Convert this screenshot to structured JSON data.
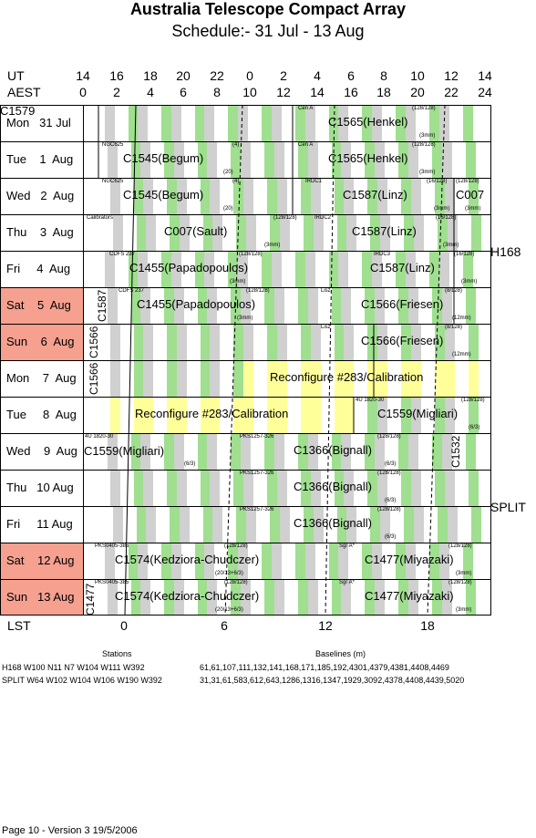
{
  "title": "Australia Telescope Compact Array",
  "subtitle": "Schedule:- 31 Jul - 13 Aug",
  "axis": {
    "ut_label": "UT",
    "aest_label": "AEST",
    "ut_ticks": [
      "14",
      "16",
      "18",
      "20",
      "22",
      "0",
      "2",
      "4",
      "6",
      "8",
      "10",
      "12",
      "14"
    ],
    "aest_ticks": [
      "0",
      "2",
      "4",
      "6",
      "8",
      "10",
      "12",
      "14",
      "16",
      "18",
      "20",
      "22",
      "24"
    ],
    "lst_label": "LST",
    "lst_ticks": [
      "0",
      "6",
      "12",
      "18"
    ]
  },
  "days": [
    {
      "label": "Mon   31 Jul",
      "weekend": false
    },
    {
      "label": "Tue    1  Aug",
      "weekend": false
    },
    {
      "label": "Wed   2  Aug",
      "weekend": false
    },
    {
      "label": "Thu    3  Aug",
      "weekend": false
    },
    {
      "label": "Fri     4  Aug",
      "weekend": false
    },
    {
      "label": "Sat    5  Aug",
      "weekend": true
    },
    {
      "label": "Sun    6  Aug",
      "weekend": true
    },
    {
      "label": "Mon    7  Aug",
      "weekend": false
    },
    {
      "label": "Tue     8  Aug",
      "weekend": false
    },
    {
      "label": "Wed    9  Aug",
      "weekend": false
    },
    {
      "label": "Thu   10 Aug",
      "weekend": false
    },
    {
      "label": "Fri     11 Aug",
      "weekend": false
    },
    {
      "label": "Sat    12 Aug",
      "weekend": true
    },
    {
      "label": "Sun   13 Aug",
      "weekend": true
    }
  ],
  "projects": {
    "r0": {
      "a": "C1579",
      "b": "C1565(Henkel)",
      "b_src": "Cen A",
      "b_cfg": "(128/128)",
      "b_note": "(3mm)"
    },
    "r1": {
      "a": "C1545(Begum)",
      "a_src": "NGC625",
      "a_cfg": "(4)",
      "a_note": "(20)",
      "b": "C1565(Henkel)",
      "b_src": "Cen A",
      "b_cfg": "(128/128)",
      "b_note": "(3mm)"
    },
    "r2": {
      "a": "C1545(Begum)",
      "a_src": "NGC625",
      "a_cfg": "(4)",
      "a_note": "(20)",
      "b": "C1587(Linz)",
      "b_src": "IRDC1",
      "b_cfg": "(16/128)",
      "b_note": "(3mm)",
      "c": "C007",
      "c_cfg": "(128/128)",
      "c_note": "(3mm)"
    },
    "r3": {
      "a": "C007(Sault)",
      "a_src": "Calibrators",
      "a_cfg": "(128/128)",
      "a_note": "(3mm)",
      "b": "C1587(Linz)",
      "b_src": "IRDC2",
      "b_cfg": "(16/128)",
      "b_note": "(3mm)"
    },
    "r4": {
      "a": "C1455(Papadopoulos)",
      "a_src": "CDFS 237",
      "a_cfg": "(128/128)",
      "a_note": "(3mm)",
      "b": "C1587(Linz)",
      "b_src": "IRDC3",
      "b_cfg": "(16/128)",
      "b_note": "(3mm)"
    },
    "r5": {
      "v": "C1587",
      "a": "C1455(Papadopoulos)",
      "a_src": "CDFS 237",
      "a_cfg": "(128/128)",
      "a_note": "(3mm)",
      "b": "C1566(Friesen)",
      "b_src": "Lisz",
      "b_cfg": "(8/128)",
      "b_note": "(12mm)"
    },
    "r6": {
      "v": "C1566",
      "b": "C1566(Friesen)",
      "b_src": "Lisz",
      "b_cfg": "(8/128)",
      "b_note": "(12mm)"
    },
    "r7": {
      "v": "C1566",
      "a": "Reconfigure #283/Calibration"
    },
    "r8": {
      "a": "Reconfigure #283/Calibration",
      "b": "C1559(Migliari)",
      "b_src": "4U 1820-30",
      "b_cfg": "(128/128)",
      "b_note": "(6/3)"
    },
    "r9": {
      "a": "C1559(Migliari)",
      "a_src": "4U 1820-30",
      "a_note": "(6/3)",
      "b": "C1366(Bignall)",
      "b_src": "PKS1257-326",
      "b_cfg": "(128/128)",
      "b_note": "(6/3)",
      "v": "C1532"
    },
    "r10": {
      "b": "C1366(Bignall)",
      "b_src": "PKS1257-326",
      "b_cfg": "(128/128)",
      "b_note": "(6/3)"
    },
    "r11": {
      "b": "C1366(Bignall)",
      "b_src": "PKS1257-326",
      "b_cfg": "(128/128)",
      "b_note": "(6/3)"
    },
    "r12": {
      "a": "C1574(Kedziora-Chudczer)",
      "a_src": "PKS0405-385",
      "a_cfg": "(128/128)",
      "a_note": "(20/13+6/3)",
      "b": "C1477(Miyazaki)",
      "b_src": "Sgr A*",
      "b_cfg": "(128/128)",
      "b_note": "(3mm)"
    },
    "r13": {
      "v": "C1477",
      "a": "C1574(Kedziora-Chudczer)",
      "a_src": "PKS0405-385",
      "a_cfg": "(128/128)",
      "a_note": "(20/13+6/3)",
      "b": "C1477(Miyazaki)",
      "b_src": "Sgr A*",
      "b_cfg": "(128/128)",
      "b_note": "(3mm)"
    }
  },
  "configs": {
    "h168": "H168",
    "split": "SPLIT"
  },
  "legend": {
    "stations_head": "Stations",
    "baselines_head": "Baselines (m)",
    "h168_stations": "H168  W100 N11 N7 W104 W111 W392",
    "h168_baselines": "61,61,107,111,132,141,168,171,185,192,4301,4379,4381,4408,4469",
    "split_stations": "SPLIT W64 W102 W104 W106 W190 W392",
    "split_baselines": "31,31,61,583,612,643,1286,1316,1347,1929,3092,4378,4408,4439,5020"
  },
  "footer": "Page 10 - Version 3  19/5/2006",
  "colors": {
    "weekend": "#f6a08f",
    "green": "#9fdf8f",
    "grey": "#d0d0d0",
    "yellow": "#ffff99"
  }
}
